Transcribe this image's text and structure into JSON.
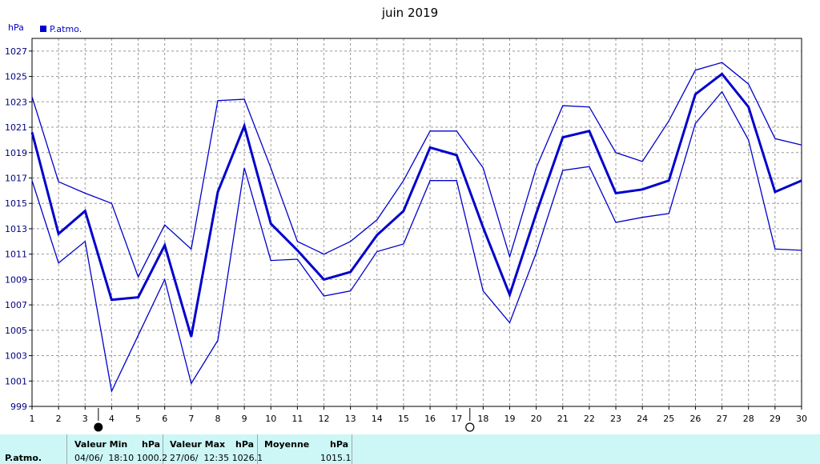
{
  "chart_data": {
    "type": "line",
    "title": "juin 2019",
    "ylabel": "hPa",
    "legend": "P.atmo.",
    "legend_position": "top-left",
    "color": "#0000cc",
    "grid": true,
    "xlim": [
      1,
      30
    ],
    "ylim": [
      999,
      1028
    ],
    "yticks": [
      999,
      1001,
      1003,
      1005,
      1007,
      1009,
      1011,
      1013,
      1015,
      1017,
      1019,
      1021,
      1023,
      1025,
      1027
    ],
    "x": [
      1,
      2,
      3,
      4,
      5,
      6,
      7,
      8,
      9,
      10,
      11,
      12,
      13,
      14,
      15,
      16,
      17,
      18,
      19,
      20,
      21,
      22,
      23,
      24,
      25,
      26,
      27,
      28,
      29,
      30
    ],
    "series": [
      {
        "role": "max",
        "values": [
          1023.4,
          1016.7,
          1015.8,
          1015.0,
          1009.2,
          1013.3,
          1011.4,
          1023.1,
          1023.2,
          1017.8,
          1012.0,
          1011.0,
          1012.0,
          1013.7,
          1016.8,
          1020.7,
          1020.7,
          1017.8,
          1010.8,
          1017.8,
          1022.7,
          1022.6,
          1019.0,
          1018.3,
          1021.5,
          1025.5,
          1026.1,
          1024.4,
          1020.1,
          1019.6
        ]
      },
      {
        "role": "mean",
        "values": [
          1020.6,
          1012.6,
          1014.4,
          1007.4,
          1007.6,
          1011.7,
          1004.5,
          1015.9,
          1021.1,
          1013.4,
          1011.3,
          1009.0,
          1009.6,
          1012.5,
          1014.4,
          1019.4,
          1018.8,
          1013.1,
          1007.8,
          1014.2,
          1020.2,
          1020.7,
          1015.8,
          1016.1,
          1016.8,
          1023.6,
          1025.2,
          1022.6,
          1015.9,
          1016.8
        ]
      },
      {
        "role": "min",
        "values": [
          1016.8,
          1010.3,
          1012.0,
          1000.2,
          1004.6,
          1009.0,
          1000.8,
          1004.2,
          1017.8,
          1010.5,
          1010.6,
          1007.7,
          1008.1,
          1011.2,
          1011.8,
          1016.8,
          1016.8,
          1008.1,
          1005.6,
          1011.1,
          1017.6,
          1017.9,
          1013.5,
          1013.9,
          1014.2,
          1021.3,
          1023.8,
          1020.0,
          1011.4,
          1011.3
        ]
      }
    ],
    "moon_phases": [
      {
        "day": 3.5,
        "phase": "new-moon"
      },
      {
        "day": 17.5,
        "phase": "full-moon"
      }
    ]
  },
  "stats": {
    "row_label": "P.atmo.",
    "min_header": "Valeur Min",
    "min_unit": "hPa",
    "min_value": "04/06/  18:10 1000.2",
    "max_header": "Valeur Max",
    "max_unit": "hPa",
    "max_value": "27/06/  12:35 1026.1",
    "avg_header": "Moyenne",
    "avg_unit": "hPa",
    "avg_value": "1015.1"
  }
}
